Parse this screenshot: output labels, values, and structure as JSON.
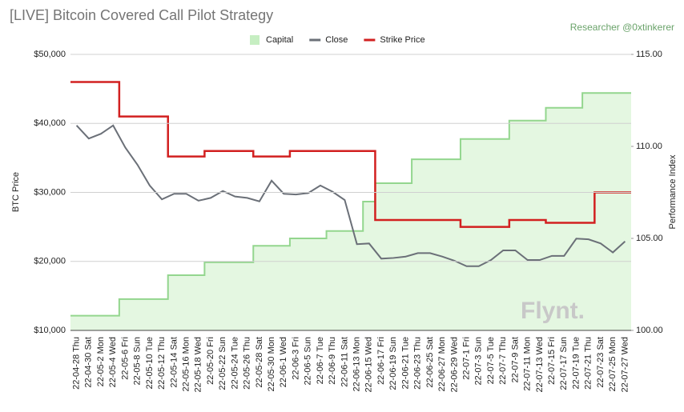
{
  "chart_data": {
    "type": "combo",
    "title": "[LIVE] Bitcoin Covered Call Pilot Strategy",
    "subtitle": "Researcher @0xtinkerer",
    "y_label": "BTC Price",
    "y2_label": "Performance Index",
    "annotation": "Flynt.",
    "categories": [
      "22-04-28 Thu",
      "22-04-30 Sat",
      "22-05-2 Mon",
      "22-05-4 Wed",
      "22-05-6 Fri",
      "22-05-8 Sun",
      "22-05-10 Tue",
      "22-05-12 Thu",
      "22-05-14 Sat",
      "22-05-16 Mon",
      "22-05-18 Wed",
      "22-05-20 Fri",
      "22-05-22 Sun",
      "22-05-24 Tue",
      "22-05-26 Thu",
      "22-05-28 Sat",
      "22-05-30 Mon",
      "22-06-1 Wed",
      "22-06-3 Fri",
      "22-06-5 Sun",
      "22-06-7 Tue",
      "22-06-9 Thu",
      "22-06-11 Sat",
      "22-06-13 Mon",
      "22-06-15 Wed",
      "22-06-17 Fri",
      "22-06-19 Sun",
      "22-06-21 Tue",
      "22-06-23 Thu",
      "22-06-25 Sat",
      "22-06-27 Mon",
      "22-06-29 Wed",
      "22-07-1 Fri",
      "22-07-3 Sun",
      "22-07-5 Tue",
      "22-07-7 Thu",
      "22-07-9 Sat",
      "22-07-11 Mon",
      "22-07-13 Wed",
      "22-07-15 Fri",
      "22-07-17 Sun",
      "22-07-19 Tue",
      "22-07-21 Thu",
      "22-07-23 Sat",
      "22-07-25 Mon",
      "22-07-27 Wed"
    ],
    "series": [
      {
        "name": "Capital",
        "color": "#93d68e",
        "kind": "step-area",
        "axis": "y2",
        "values": [
          100.8,
          100.8,
          100.8,
          100.8,
          101.7,
          101.7,
          101.7,
          101.7,
          103.0,
          103.0,
          103.0,
          103.7,
          103.7,
          103.7,
          103.7,
          104.6,
          104.6,
          104.6,
          105.0,
          105.0,
          105.0,
          105.4,
          105.4,
          105.4,
          107.0,
          108.0,
          108.0,
          108.0,
          109.3,
          109.3,
          109.3,
          109.3,
          110.4,
          110.4,
          110.4,
          110.4,
          111.4,
          111.4,
          111.4,
          112.1,
          112.1,
          112.1,
          112.9,
          112.9,
          112.9,
          112.9
        ]
      },
      {
        "name": "Close",
        "color": "#6b7078",
        "kind": "line",
        "values": [
          39700,
          37800,
          38500,
          39700,
          36500,
          34000,
          31000,
          29000,
          29800,
          29800,
          28800,
          29200,
          30200,
          29400,
          29200,
          28700,
          31700,
          29800,
          29700,
          29900,
          31000,
          30100,
          28900,
          22500,
          22600,
          20400,
          20500,
          20700,
          21200,
          21200,
          20700,
          20100,
          19300,
          19300,
          20200,
          21600,
          21600,
          20200,
          20200,
          20800,
          20800,
          23300,
          23200,
          22600,
          21300,
          22900
        ]
      },
      {
        "name": "Strike Price",
        "color": "#d22020",
        "kind": "step-line",
        "values": [
          46000,
          46000,
          46000,
          46000,
          41000,
          41000,
          41000,
          41000,
          35200,
          35200,
          35200,
          36000,
          36000,
          36000,
          36000,
          35200,
          35200,
          35200,
          36000,
          36000,
          36000,
          36000,
          36000,
          36000,
          36000,
          26000,
          26000,
          26000,
          26000,
          26000,
          26000,
          26000,
          25000,
          25000,
          25000,
          25000,
          26000,
          26000,
          26000,
          25600,
          25600,
          25600,
          25600,
          30000,
          30000,
          30000
        ]
      }
    ],
    "ylim": [
      10000,
      50000
    ],
    "yticks": [
      {
        "value": 10000,
        "label": "$10,000"
      },
      {
        "value": 20000,
        "label": "$20,000"
      },
      {
        "value": 30000,
        "label": "$30,000"
      },
      {
        "value": 40000,
        "label": "$40,000"
      },
      {
        "value": 50000,
        "label": "$50,000"
      }
    ],
    "y2lim": [
      100,
      115
    ],
    "y2ticks": [
      {
        "value": 100,
        "label": "100.00"
      },
      {
        "value": 105,
        "label": "105.00"
      },
      {
        "value": 110,
        "label": "110.00"
      },
      {
        "value": 115,
        "label": "115.00"
      }
    ],
    "grid": true,
    "legend": "top"
  }
}
